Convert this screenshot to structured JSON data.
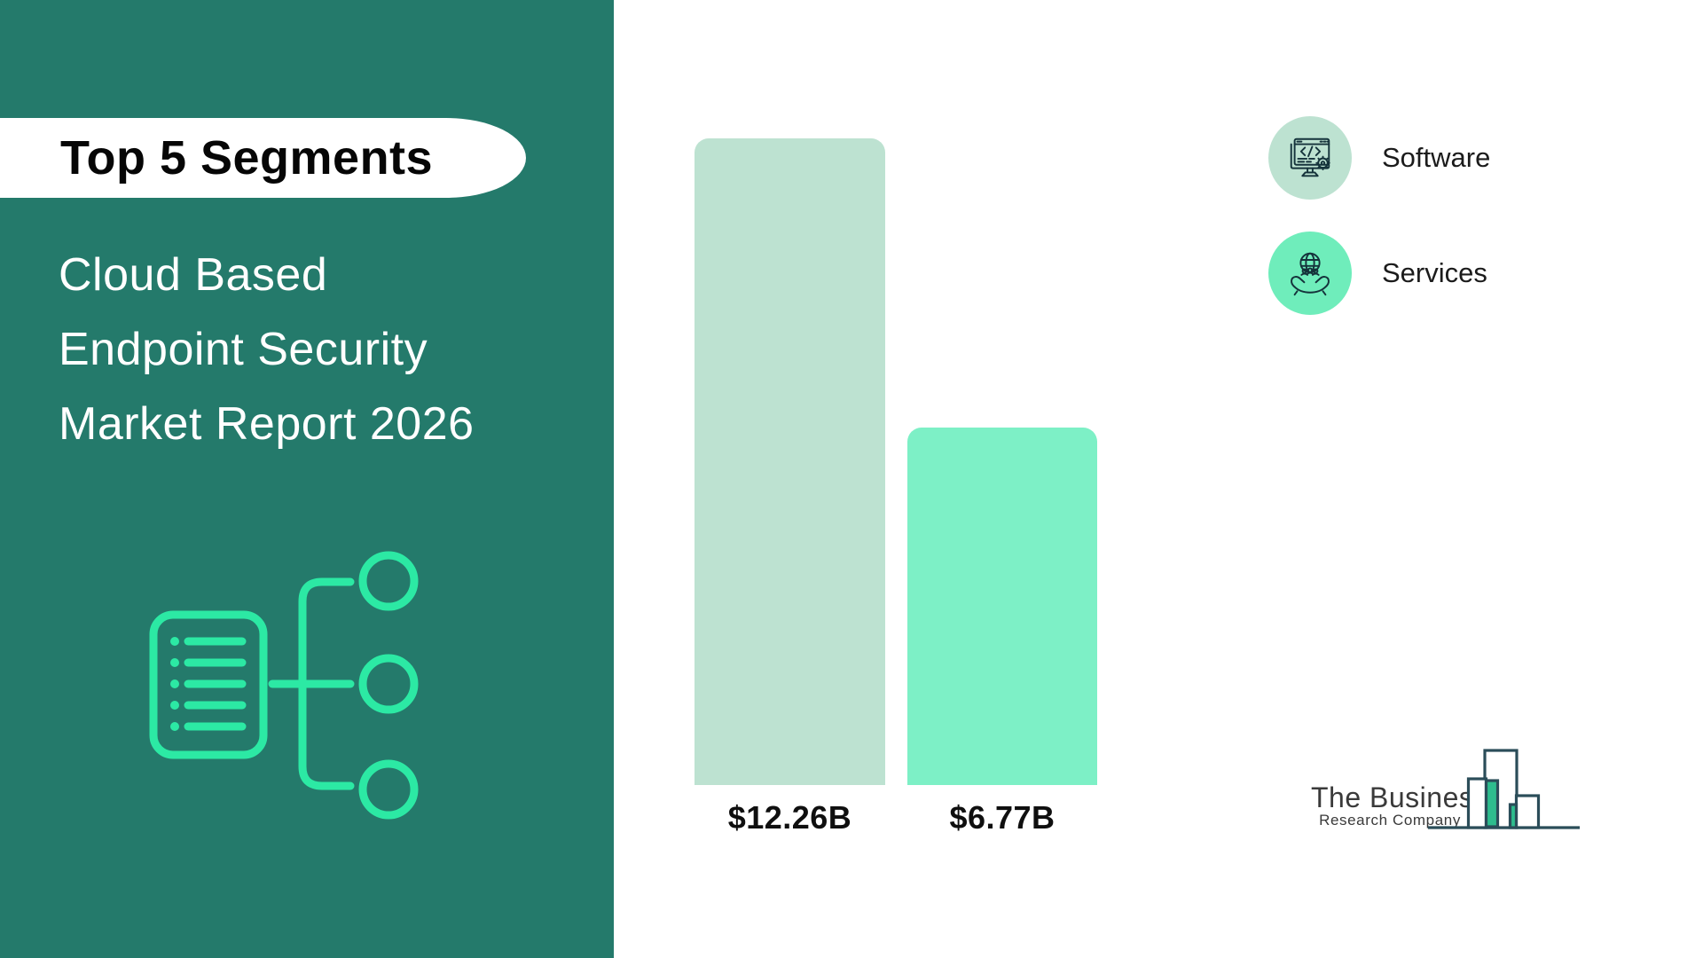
{
  "sidebar": {
    "badge": "Top 5 Segments",
    "title": "Cloud Based Endpoint Security Market Report 2026",
    "title_lines": [
      "Cloud Based",
      "Endpoint Security",
      "Market Report 2026"
    ],
    "colors": {
      "background": "#247A6B",
      "accent_mint": "#2CE9A4"
    }
  },
  "chart_data": {
    "type": "bar",
    "title": "Cloud Based Endpoint Security Market Report 2026 — Top 5 Segments",
    "categories": [
      "Software",
      "Services"
    ],
    "values": [
      12.26,
      6.77
    ],
    "unit": "USD billions",
    "value_labels": [
      "$12.26B",
      "$6.77B"
    ],
    "bar_colors": [
      "#BDE2D1",
      "#7DF0C6"
    ],
    "xlabel": "",
    "ylabel": "",
    "grid": false,
    "axes_hidden": true,
    "legend_position": "top-right"
  },
  "legend": {
    "items": [
      {
        "label": "Software",
        "icon": "software-monitor-code-icon",
        "circle_color": "#BDE2D1"
      },
      {
        "label": "Services",
        "icon": "globe-in-hands-icon",
        "circle_color": "#6FEDBB"
      }
    ]
  },
  "logo": {
    "line1": "The Business",
    "line2": "Research Company",
    "colors": {
      "outline": "#2B4D59",
      "fill_green": "#2EBD8E"
    }
  }
}
